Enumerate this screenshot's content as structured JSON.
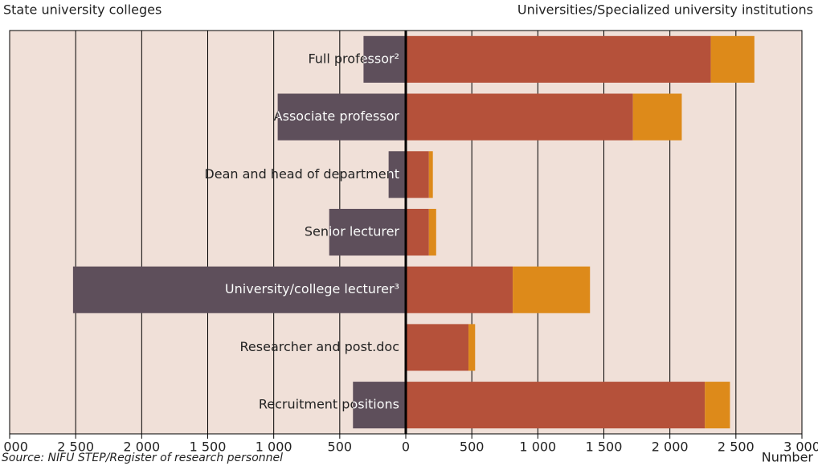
{
  "chart_data": {
    "type": "butterfly-bar",
    "left_title": "State university colleges",
    "right_title": "Universities/Specialized university institutions",
    "x_label": "Number",
    "source": "Source: NIFU STEP/Register of research personnel",
    "categories": [
      "Full professor²",
      "Associate professor",
      "Dean and head of department",
      "Senior lecturer",
      "University/college lecturer³",
      "Researcher and post.doc",
      "Recruitment positions"
    ],
    "series": [
      {
        "name": "State university colleges",
        "side": "left",
        "color": "#5e4f5b",
        "values": [
          320,
          970,
          130,
          580,
          2520,
          0,
          400
        ]
      },
      {
        "side": "right",
        "color": "#b5513a",
        "values": [
          2310,
          1720,
          175,
          175,
          810,
          475,
          2265
        ]
      },
      {
        "side": "right",
        "color": "#dd8a1a",
        "values": [
          330,
          370,
          30,
          55,
          585,
          50,
          190
        ]
      }
    ],
    "xlim": [
      -3000,
      3000
    ],
    "xticks": [
      {
        "value": -3000,
        "label": "3 000"
      },
      {
        "value": -2500,
        "label": "2 500"
      },
      {
        "value": -2000,
        "label": "2 000"
      },
      {
        "value": -1500,
        "label": "1 500"
      },
      {
        "value": -1000,
        "label": "1 000"
      },
      {
        "value": -500,
        "label": "500"
      },
      0,
      500,
      {
        "value": 1000,
        "label": "1 000"
      },
      {
        "value": 1500,
        "label": "1 500"
      },
      {
        "value": 2000,
        "label": "2 000"
      },
      {
        "value": 2500,
        "label": "2 500"
      },
      {
        "value": 3000,
        "label": "3 000"
      }
    ],
    "grid": true,
    "background": "#f0e0d8"
  }
}
